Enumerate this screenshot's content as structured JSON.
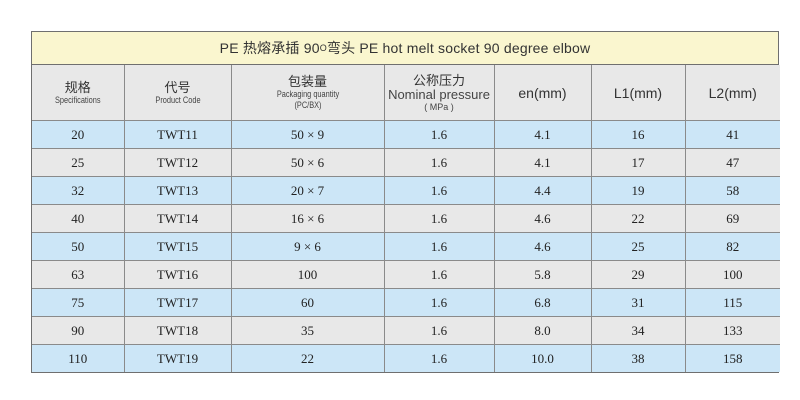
{
  "title": {
    "before_sup": "PE 热熔承插 90",
    "sup": "O",
    "after_sup": " 弯头 PE hot melt socket 90 degree elbow"
  },
  "headers": {
    "spec": {
      "cn": "规格",
      "en": "Specifications"
    },
    "code": {
      "cn": "代号",
      "en": "Product Code"
    },
    "pack": {
      "cn": "包装量",
      "en": "Packaging quantity",
      "unit": "(PC/BX)"
    },
    "pressure": {
      "cn": "公称压力",
      "en": "Nominal pressure",
      "unit": "( MPa )"
    },
    "en": "en(mm)",
    "l1": "L1(mm)",
    "l2": "L2(mm)"
  },
  "rows": [
    {
      "spec": "20",
      "code": "TWT11",
      "pack": "50 × 9",
      "pressure": "1.6",
      "en": "4.1",
      "l1": "16",
      "l2": "41"
    },
    {
      "spec": "25",
      "code": "TWT12",
      "pack": "50 × 6",
      "pressure": "1.6",
      "en": "4.1",
      "l1": "17",
      "l2": "47"
    },
    {
      "spec": "32",
      "code": "TWT13",
      "pack": "20 × 7",
      "pressure": "1.6",
      "en": "4.4",
      "l1": "19",
      "l2": "58"
    },
    {
      "spec": "40",
      "code": "TWT14",
      "pack": "16 × 6",
      "pressure": "1.6",
      "en": "4.6",
      "l1": "22",
      "l2": "69"
    },
    {
      "spec": "50",
      "code": "TWT15",
      "pack": "9 × 6",
      "pressure": "1.6",
      "en": "4.6",
      "l1": "25",
      "l2": "82"
    },
    {
      "spec": "63",
      "code": "TWT16",
      "pack": "100",
      "pressure": "1.6",
      "en": "5.8",
      "l1": "29",
      "l2": "100"
    },
    {
      "spec": "75",
      "code": "TWT17",
      "pack": "60",
      "pressure": "1.6",
      "en": "6.8",
      "l1": "31",
      "l2": "115"
    },
    {
      "spec": "90",
      "code": "TWT18",
      "pack": "35",
      "pressure": "1.6",
      "en": "8.0",
      "l1": "34",
      "l2": "133"
    },
    {
      "spec": "110",
      "code": "TWT19",
      "pack": "22",
      "pressure": "1.6",
      "en": "10.0",
      "l1": "38",
      "l2": "158"
    }
  ],
  "colors": {
    "title_bg": "#faf6cf",
    "row_blue": "#cce6f7",
    "row_gray": "#e8e8e8",
    "border": "#6f6f6f"
  }
}
